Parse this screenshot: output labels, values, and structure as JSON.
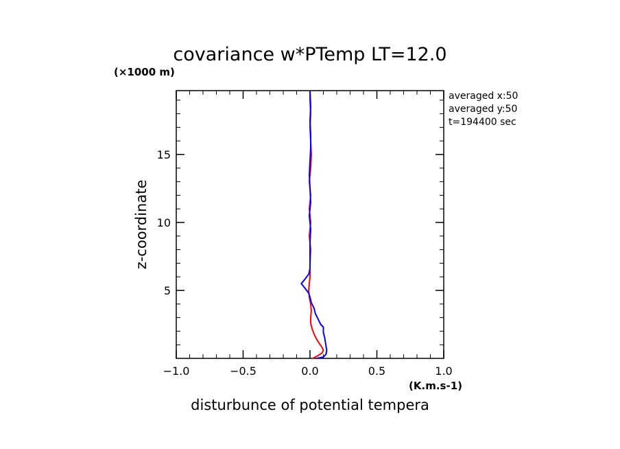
{
  "chart_data": {
    "type": "line",
    "title": "covariance w*PTemp LT=12.0",
    "xlabel": "disturbunce of potential tempera",
    "ylabel": "z-coordinate",
    "x_unit": "(K.m.s-1)",
    "y_unit": "(×1000 m)",
    "xlim": [
      -1.0,
      1.0
    ],
    "ylim": [
      0,
      19.7
    ],
    "x_ticks": [
      -1.0,
      -0.5,
      0.0,
      0.5,
      1.0
    ],
    "x_tick_labels": [
      "−1.0",
      "−0.5",
      "0.0",
      "0.5",
      "1.0"
    ],
    "y_ticks": [
      5,
      10,
      15
    ],
    "y_tick_labels": [
      "5",
      "10",
      "15"
    ],
    "notes": [
      "averaged  x:50",
      "averaged  y:50",
      "t=194400 sec"
    ],
    "series": [
      {
        "color": "#ff0000",
        "points": [
          [
            0.02,
            0.0
          ],
          [
            0.06,
            0.2
          ],
          [
            0.09,
            0.4
          ],
          [
            0.1,
            0.6
          ],
          [
            0.09,
            0.8
          ],
          [
            0.07,
            1.1
          ],
          [
            0.05,
            1.4
          ],
          [
            0.03,
            1.8
          ],
          [
            0.015,
            2.2
          ],
          [
            0.005,
            2.6
          ],
          [
            0.005,
            3.0
          ],
          [
            0.01,
            3.5
          ],
          [
            0.005,
            4.0
          ],
          [
            -0.005,
            4.5
          ],
          [
            -0.01,
            5.0
          ],
          [
            -0.005,
            5.5
          ],
          [
            0.0,
            6.0
          ],
          [
            0.0,
            7.0
          ],
          [
            0.005,
            8.0
          ],
          [
            -0.005,
            9.0
          ],
          [
            0.005,
            10.0
          ],
          [
            -0.005,
            11.0
          ],
          [
            0.005,
            12.0
          ],
          [
            -0.005,
            13.0
          ],
          [
            0.005,
            14.0
          ],
          [
            0.01,
            15.0
          ],
          [
            0.005,
            16.0
          ],
          [
            0.0,
            17.0
          ],
          [
            0.005,
            18.0
          ],
          [
            0.0,
            19.0
          ],
          [
            0.0,
            19.7
          ]
        ]
      },
      {
        "color": "#0000ff",
        "points": [
          [
            0.05,
            0.0
          ],
          [
            0.1,
            0.1
          ],
          [
            0.12,
            0.3
          ],
          [
            0.125,
            0.6
          ],
          [
            0.12,
            0.9
          ],
          [
            0.115,
            1.2
          ],
          [
            0.11,
            1.5
          ],
          [
            0.1,
            1.9
          ],
          [
            0.1,
            2.3
          ],
          [
            0.08,
            2.5
          ],
          [
            0.06,
            2.9
          ],
          [
            0.04,
            3.3
          ],
          [
            0.03,
            3.7
          ],
          [
            0.01,
            4.1
          ],
          [
            0.0,
            4.5
          ],
          [
            -0.01,
            4.8
          ],
          [
            -0.04,
            5.2
          ],
          [
            -0.065,
            5.5
          ],
          [
            -0.04,
            5.8
          ],
          [
            -0.01,
            6.2
          ],
          [
            0.0,
            6.6
          ],
          [
            0.0,
            7.5
          ],
          [
            0.0,
            8.5
          ],
          [
            0.005,
            9.5
          ],
          [
            -0.005,
            10.5
          ],
          [
            0.005,
            11.5
          ],
          [
            0.0,
            12.5
          ],
          [
            -0.005,
            13.5
          ],
          [
            0.0,
            14.5
          ],
          [
            0.005,
            15.5
          ],
          [
            0.005,
            16.5
          ],
          [
            0.0,
            17.5
          ],
          [
            0.005,
            18.5
          ],
          [
            0.0,
            19.7
          ]
        ]
      }
    ]
  }
}
